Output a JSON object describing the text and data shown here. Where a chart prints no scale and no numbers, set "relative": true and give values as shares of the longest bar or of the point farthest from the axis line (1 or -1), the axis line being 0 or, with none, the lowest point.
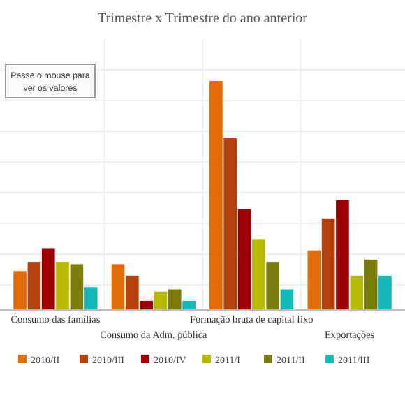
{
  "chart_data": {
    "type": "bar",
    "title": "Trimestre x Trimestre do ano anterior",
    "relative": true,
    "grid": true,
    "legend": "bottom",
    "annotations": [
      "Passe o mouse para ver os valores"
    ],
    "categories": [
      "Consumo das famílias",
      "Consumo da Adm. pública",
      "Formação bruta de capital fixo",
      "Exportações"
    ],
    "series": [
      {
        "name": "2010/II",
        "color": "#e36c0a",
        "values": [
          0.17,
          0.2,
          1,
          0.26
        ]
      },
      {
        "name": "2010/III",
        "color": "#b5420e",
        "values": [
          0.21,
          0.15,
          0.75,
          0.4
        ]
      },
      {
        "name": "2010/IV",
        "color": "#9c0006",
        "values": [
          0.27,
          0.04,
          0.44,
          0.48
        ]
      },
      {
        "name": "2011/I",
        "color": "#b7b800",
        "values": [
          0.21,
          0.08,
          0.31,
          0.15
        ]
      },
      {
        "name": "2011/II",
        "color": "#7a7d0c",
        "values": [
          0.2,
          0.09,
          0.21,
          0.22
        ]
      },
      {
        "name": "2011/III",
        "color": "#17b8b8",
        "values": [
          0.1,
          0.04,
          0.09,
          0.15
        ]
      }
    ]
  }
}
